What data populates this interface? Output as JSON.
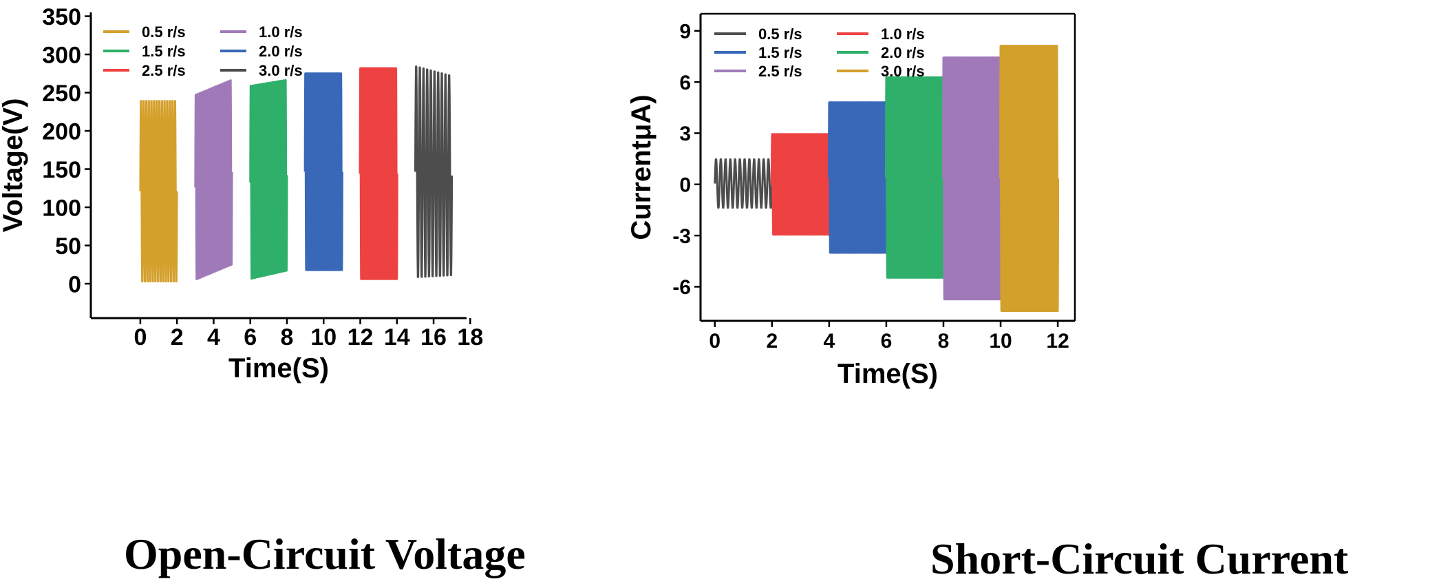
{
  "captions": {
    "left": "Open-Circuit Voltage",
    "right": "Short-Circuit Current"
  },
  "chart_data": [
    {
      "type": "line",
      "title": "Open-Circuit Voltage",
      "xlabel": "Time(S)",
      "ylabel": "Voltage(V)",
      "xlim": [
        -2.7,
        17.8
      ],
      "ylim": [
        -45,
        355
      ],
      "xticks": [
        0,
        2,
        4,
        6,
        8,
        10,
        12,
        14,
        16,
        18
      ],
      "yticks": [
        0,
        50,
        100,
        150,
        200,
        250,
        300,
        350
      ],
      "legend_position": "top-left",
      "legend_columns": 2,
      "series": [
        {
          "name": "0.5 r/s",
          "color": "#D4A02C",
          "x_start": 0,
          "x_end": 2,
          "cycles": 14,
          "min": 0,
          "max": 242,
          "max_end": 242,
          "min_end": 0
        },
        {
          "name": "1.0 r/s",
          "color": "#A07AB8",
          "x_start": 3,
          "x_end": 5,
          "cycles": 20,
          "min": 2,
          "max": 250,
          "max_end": 270,
          "min_end": 22
        },
        {
          "name": "1.5 r/s",
          "color": "#2EAF6A",
          "x_start": 6,
          "x_end": 8,
          "cycles": 20,
          "min": 3,
          "max": 262,
          "max_end": 270,
          "min_end": 14
        },
        {
          "name": "2.0 r/s",
          "color": "#3A68B8",
          "x_start": 9,
          "x_end": 11,
          "cycles": 22,
          "min": 15,
          "max": 278,
          "max_end": 278,
          "min_end": 15
        },
        {
          "name": "2.5 r/s",
          "color": "#EE4242",
          "x_start": 12,
          "x_end": 14,
          "cycles": 22,
          "min": 3,
          "max": 285,
          "max_end": 285,
          "min_end": 3
        },
        {
          "name": "3.0 r/s",
          "color": "#4D4D4D",
          "x_start": 15,
          "x_end": 17,
          "cycles": 10,
          "min": 5,
          "max": 288,
          "max_end": 275,
          "min_end": 8
        }
      ]
    },
    {
      "type": "line",
      "title": "Short-Circuit Current",
      "xlabel": "Time(S)",
      "ylabel": "CurrentμA)",
      "xlim": [
        -0.5,
        12.6
      ],
      "ylim": [
        -8,
        10
      ],
      "xticks": [
        0,
        2,
        4,
        6,
        8,
        10,
        12
      ],
      "yticks": [
        -6,
        -3,
        0,
        3,
        6,
        9
      ],
      "legend_position": "top-left",
      "legend_columns": 2,
      "series": [
        {
          "name": "0.5 r/s",
          "color": "#4D4D4D",
          "x_start": 0,
          "x_end": 2,
          "cycles": 12,
          "min": -1.4,
          "max": 1.5,
          "max_end": 1.5,
          "min_end": -1.4
        },
        {
          "name": "1.0 r/s",
          "color": "#EE4242",
          "x_start": 2,
          "x_end": 4,
          "cycles": 26,
          "min": -3.0,
          "max": 3.0,
          "max_end": 3.0,
          "min_end": -3.0
        },
        {
          "name": "1.5 r/s",
          "color": "#3A68B8",
          "x_start": 4,
          "x_end": 6,
          "cycles": 30,
          "min": -4.1,
          "max": 4.9,
          "max_end": 4.9,
          "min_end": -4.1
        },
        {
          "name": "2.0 r/s",
          "color": "#2EAF6A",
          "x_start": 6,
          "x_end": 8,
          "cycles": 32,
          "min": -5.6,
          "max": 6.4,
          "max_end": 6.4,
          "min_end": -5.6
        },
        {
          "name": "2.5 r/s",
          "color": "#A07AB8",
          "x_start": 8,
          "x_end": 10,
          "cycles": 34,
          "min": -6.9,
          "max": 7.6,
          "max_end": 7.6,
          "min_end": -6.9
        },
        {
          "name": "3.0 r/s",
          "color": "#D4A02C",
          "x_start": 10,
          "x_end": 12,
          "cycles": 36,
          "min": -7.6,
          "max": 8.3,
          "max_end": 8.3,
          "min_end": -7.6
        }
      ]
    }
  ]
}
